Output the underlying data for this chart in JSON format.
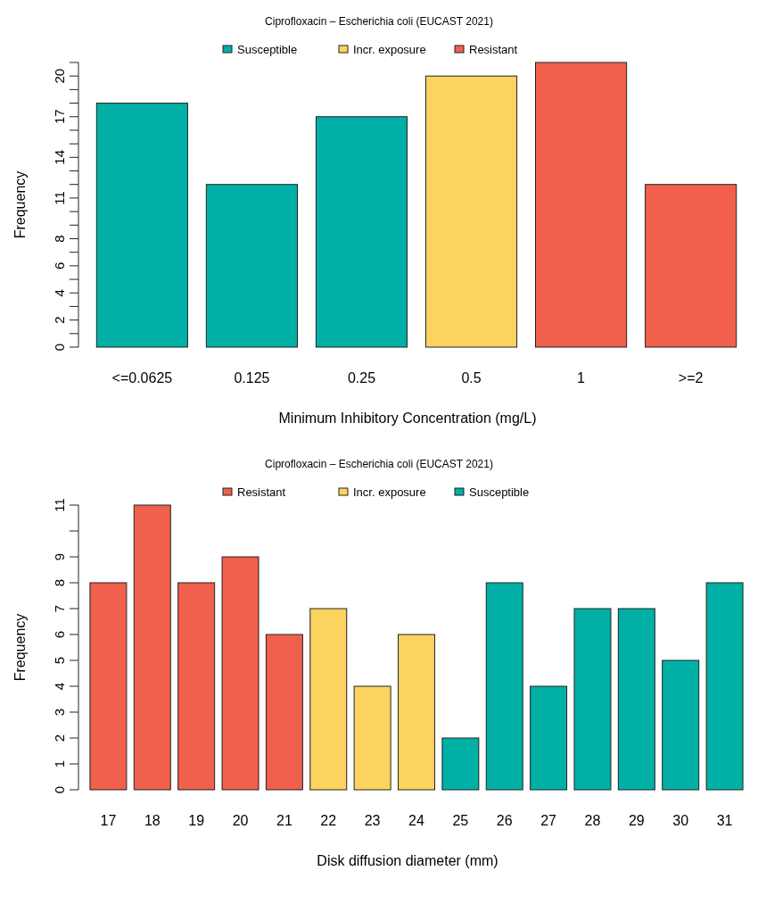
{
  "chart_data": [
    {
      "type": "bar",
      "title": "Ciprofloxacin – Escherichia coli (EUCAST 2021)",
      "xlabel": "Minimum Inhibitory Concentration (mg/L)",
      "ylabel": "Frequency",
      "categories": [
        "<=0.0625",
        "0.125",
        "0.25",
        "0.5",
        "1",
        ">=2"
      ],
      "stacked": true,
      "legend": "top",
      "series": [
        {
          "name": "Susceptible",
          "color": "#00b0a6",
          "values": [
            18,
            12,
            17,
            null,
            null,
            null
          ]
        },
        {
          "name": "Incr. exposure",
          "color": "#fdd35f",
          "values": [
            null,
            null,
            null,
            20,
            null,
            null
          ]
        },
        {
          "name": "Resistant",
          "color": "#f0604c",
          "values": [
            null,
            null,
            null,
            null,
            21,
            12
          ]
        }
      ],
      "ylim": [
        0,
        21
      ],
      "yticks": [
        0,
        {
          "value": 1,
          "label": null
        },
        2,
        {
          "value": 3,
          "label": null
        },
        4,
        {
          "value": 5,
          "label": null
        },
        6,
        {
          "value": 7,
          "label": null
        },
        8,
        {
          "value": 9,
          "label": null
        },
        {
          "value": 10,
          "label": null
        },
        11,
        {
          "value": 12,
          "label": null
        },
        {
          "value": 13,
          "label": null
        },
        14,
        {
          "value": 15,
          "label": null
        },
        {
          "value": 16,
          "label": null
        },
        17,
        {
          "value": 18,
          "label": null
        },
        {
          "value": 19,
          "label": null
        },
        20,
        {
          "value": 21,
          "label": null
        }
      ]
    },
    {
      "type": "bar",
      "title": "Ciprofloxacin – Escherichia coli (EUCAST 2021)",
      "xlabel": "Disk diffusion diameter (mm)",
      "ylabel": "Frequency",
      "categories": [
        "17",
        "18",
        "19",
        "20",
        "21",
        "22",
        "23",
        "24",
        "25",
        "26",
        "27",
        "28",
        "29",
        "30",
        "31"
      ],
      "stacked": true,
      "legend": "top",
      "series": [
        {
          "name": "Resistant",
          "color": "#f0604c",
          "values": [
            8,
            11,
            8,
            9,
            6,
            null,
            null,
            null,
            null,
            null,
            null,
            null,
            null,
            null,
            null
          ]
        },
        {
          "name": "Incr. exposure",
          "color": "#fdd35f",
          "values": [
            null,
            null,
            null,
            null,
            null,
            7,
            4,
            6,
            null,
            null,
            null,
            null,
            null,
            null,
            null
          ]
        },
        {
          "name": "Susceptible",
          "color": "#00b0a6",
          "values": [
            null,
            null,
            null,
            null,
            null,
            null,
            null,
            null,
            2,
            8,
            4,
            7,
            7,
            5,
            8
          ]
        }
      ],
      "ylim": [
        0,
        11
      ],
      "yticks": [
        0,
        1,
        2,
        3,
        4,
        5,
        6,
        7,
        8,
        9,
        {
          "value": 10,
          "label": null
        },
        11
      ]
    }
  ]
}
